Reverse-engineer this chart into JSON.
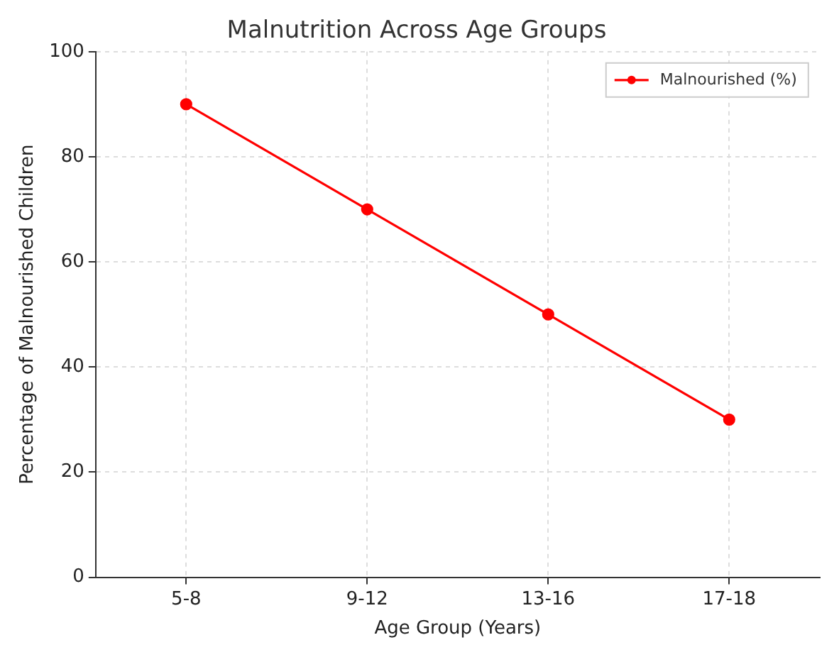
{
  "chart_data": {
    "type": "line",
    "title": "Malnutrition Across Age Groups",
    "xlabel": "Age Group (Years)",
    "ylabel": "Percentage of Malnourished Children",
    "categories": [
      "5-8",
      "9-12",
      "13-16",
      "17-18"
    ],
    "series": [
      {
        "name": "Malnourished (%)",
        "color": "#ff0000",
        "values": [
          90,
          70,
          50,
          30
        ]
      }
    ],
    "ylim": [
      0,
      100
    ],
    "yticks": [
      0,
      20,
      40,
      60,
      80,
      100
    ],
    "grid": true,
    "legend": "top right",
    "marker": "circle",
    "line_style": "solid"
  }
}
